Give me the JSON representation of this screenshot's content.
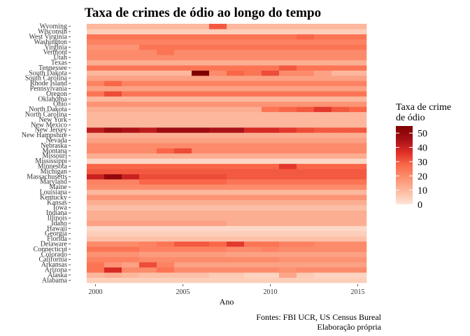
{
  "chart_data": {
    "type": "heatmap",
    "title": "Taxa de crimes de ódio ao longo do tempo",
    "xlabel": "Ano",
    "ylabel": "",
    "x": [
      2000,
      2001,
      2002,
      2003,
      2004,
      2005,
      2006,
      2007,
      2008,
      2009,
      2010,
      2011,
      2012,
      2013,
      2014,
      2015
    ],
    "x_ticks": [
      2000,
      2005,
      2010,
      2015
    ],
    "states": [
      "Alabama",
      "Alaska",
      "Arizona",
      "Arkansas",
      "California",
      "Colorado",
      "Connecticut",
      "Delaware",
      "Florida",
      "Georgia",
      "Hawaii",
      "Idaho",
      "Illinois",
      "Indiana",
      "Iowa",
      "Kansas",
      "Kentucky",
      "Louisiana",
      "Maine",
      "Maryland",
      "Massachusetts",
      "Michigan",
      "Minnesota",
      "Mississippi",
      "Missouri",
      "Montana",
      "Nebraska",
      "Nevada",
      "New Hampshire",
      "New Jersey",
      "New Mexico",
      "New York",
      "North Carolina",
      "North Dakota",
      "Ohio",
      "Oklahoma",
      "Oregon",
      "Pennsylvania",
      "Rhode Island",
      "South Carolina",
      "South Dakota",
      "Tennessee",
      "Texas",
      "Utah",
      "Vermont",
      "Virginia",
      "Washington",
      "West Virginia",
      "Wisconsin",
      "Wyoming"
    ],
    "values": [
      [
        5,
        5,
        5,
        5,
        5,
        5,
        5,
        5,
        5,
        5,
        5,
        5,
        5,
        5,
        5,
        5
      ],
      [
        10,
        12,
        10,
        8,
        8,
        8,
        8,
        6,
        6,
        4,
        4,
        14,
        6,
        4,
        4,
        4
      ],
      [
        25,
        38,
        20,
        20,
        25,
        20,
        20,
        20,
        20,
        20,
        20,
        18,
        20,
        20,
        20,
        20
      ],
      [
        25,
        18,
        15,
        32,
        22,
        15,
        15,
        15,
        15,
        15,
        15,
        15,
        15,
        15,
        15,
        15
      ],
      [
        22,
        22,
        22,
        20,
        20,
        20,
        20,
        20,
        20,
        20,
        20,
        18,
        18,
        18,
        18,
        18
      ],
      [
        18,
        18,
        18,
        16,
        16,
        16,
        16,
        16,
        15,
        15,
        15,
        15,
        15,
        15,
        15,
        15
      ],
      [
        25,
        25,
        25,
        22,
        22,
        22,
        22,
        22,
        20,
        20,
        22,
        20,
        20,
        20,
        20,
        20
      ],
      [
        20,
        20,
        20,
        22,
        25,
        30,
        30,
        28,
        35,
        25,
        25,
        22,
        22,
        20,
        20,
        20
      ],
      [
        8,
        8,
        8,
        8,
        8,
        8,
        8,
        8,
        8,
        8,
        8,
        8,
        8,
        8,
        8,
        8
      ],
      [
        5,
        5,
        5,
        5,
        5,
        5,
        5,
        5,
        5,
        5,
        5,
        5,
        5,
        5,
        5,
        5
      ],
      [
        3,
        3,
        3,
        3,
        3,
        3,
        3,
        3,
        3,
        3,
        3,
        3,
        3,
        3,
        3,
        3
      ],
      [
        15,
        15,
        15,
        15,
        15,
        15,
        15,
        15,
        12,
        12,
        12,
        12,
        12,
        12,
        12,
        12
      ],
      [
        12,
        12,
        12,
        12,
        12,
        12,
        12,
        12,
        12,
        12,
        12,
        12,
        12,
        12,
        12,
        12
      ],
      [
        12,
        12,
        12,
        12,
        12,
        12,
        12,
        12,
        12,
        12,
        12,
        12,
        12,
        12,
        12,
        12
      ],
      [
        8,
        8,
        8,
        8,
        8,
        8,
        8,
        8,
        8,
        8,
        8,
        8,
        8,
        8,
        8,
        8
      ],
      [
        12,
        12,
        12,
        12,
        12,
        12,
        12,
        12,
        12,
        12,
        12,
        12,
        12,
        12,
        12,
        12
      ],
      [
        18,
        18,
        18,
        18,
        18,
        18,
        18,
        18,
        18,
        18,
        18,
        18,
        18,
        18,
        18,
        18
      ],
      [
        10,
        10,
        10,
        10,
        10,
        10,
        10,
        10,
        10,
        10,
        10,
        10,
        10,
        10,
        10,
        10
      ],
      [
        20,
        20,
        20,
        20,
        20,
        20,
        20,
        20,
        20,
        20,
        20,
        20,
        20,
        20,
        20,
        20
      ],
      [
        22,
        22,
        22,
        28,
        28,
        28,
        28,
        28,
        25,
        25,
        25,
        25,
        25,
        25,
        25,
        25
      ],
      [
        40,
        50,
        40,
        32,
        32,
        32,
        32,
        32,
        30,
        30,
        30,
        30,
        30,
        30,
        30,
        30
      ],
      [
        30,
        30,
        30,
        30,
        30,
        30,
        30,
        30,
        30,
        30,
        30,
        30,
        30,
        30,
        30,
        30
      ],
      [
        28,
        28,
        28,
        28,
        28,
        28,
        28,
        28,
        28,
        28,
        28,
        35,
        28,
        28,
        28,
        28
      ],
      [
        3,
        3,
        3,
        3,
        3,
        3,
        3,
        3,
        3,
        3,
        3,
        3,
        3,
        3,
        3,
        3
      ],
      [
        12,
        12,
        12,
        12,
        12,
        12,
        12,
        12,
        12,
        12,
        12,
        12,
        12,
        12,
        12,
        12
      ],
      [
        20,
        20,
        20,
        20,
        28,
        32,
        20,
        20,
        20,
        20,
        20,
        20,
        20,
        20,
        20,
        20
      ],
      [
        20,
        20,
        20,
        20,
        20,
        20,
        20,
        20,
        20,
        20,
        20,
        20,
        20,
        20,
        20,
        20
      ],
      [
        15,
        15,
        15,
        15,
        15,
        15,
        15,
        15,
        15,
        15,
        15,
        15,
        15,
        15,
        15,
        15
      ],
      [
        12,
        12,
        12,
        12,
        12,
        12,
        12,
        12,
        12,
        12,
        12,
        12,
        12,
        12,
        12,
        12
      ],
      [
        42,
        48,
        45,
        42,
        48,
        48,
        48,
        45,
        45,
        38,
        38,
        35,
        32,
        30,
        30,
        30
      ],
      [
        10,
        10,
        10,
        10,
        10,
        10,
        10,
        10,
        10,
        10,
        10,
        10,
        10,
        10,
        10,
        10
      ],
      [
        10,
        10,
        10,
        10,
        10,
        10,
        10,
        10,
        10,
        10,
        10,
        10,
        10,
        10,
        10,
        10
      ],
      [
        10,
        10,
        10,
        10,
        10,
        10,
        10,
        10,
        10,
        10,
        10,
        10,
        10,
        10,
        10,
        10
      ],
      [
        12,
        12,
        12,
        12,
        12,
        12,
        12,
        12,
        12,
        12,
        25,
        28,
        30,
        35,
        30,
        28
      ],
      [
        18,
        18,
        18,
        18,
        18,
        18,
        18,
        18,
        18,
        18,
        18,
        18,
        18,
        18,
        18,
        18
      ],
      [
        10,
        10,
        10,
        10,
        10,
        10,
        10,
        10,
        10,
        10,
        10,
        10,
        10,
        10,
        10,
        10
      ],
      [
        25,
        32,
        25,
        25,
        25,
        25,
        25,
        25,
        25,
        25,
        25,
        25,
        25,
        25,
        25,
        25
      ],
      [
        15,
        15,
        15,
        15,
        15,
        15,
        15,
        15,
        15,
        15,
        15,
        15,
        15,
        15,
        15,
        15
      ],
      [
        22,
        28,
        22,
        22,
        22,
        22,
        22,
        22,
        22,
        22,
        22,
        22,
        22,
        22,
        22,
        22
      ],
      [
        15,
        15,
        15,
        15,
        15,
        15,
        15,
        15,
        15,
        15,
        15,
        15,
        15,
        15,
        15,
        15
      ],
      [
        10,
        10,
        10,
        10,
        10,
        10,
        55,
        20,
        28,
        25,
        32,
        20,
        20,
        15,
        10,
        10
      ],
      [
        25,
        25,
        25,
        25,
        25,
        25,
        25,
        25,
        25,
        25,
        25,
        30,
        25,
        25,
        25,
        25
      ],
      [
        12,
        12,
        12,
        12,
        12,
        12,
        12,
        12,
        12,
        12,
        12,
        12,
        12,
        12,
        12,
        12
      ],
      [
        20,
        20,
        20,
        20,
        20,
        20,
        20,
        20,
        20,
        20,
        20,
        20,
        20,
        20,
        20,
        20
      ],
      [
        20,
        20,
        20,
        20,
        25,
        20,
        20,
        20,
        20,
        20,
        20,
        20,
        20,
        20,
        20,
        20
      ],
      [
        18,
        18,
        18,
        25,
        25,
        25,
        25,
        25,
        25,
        25,
        25,
        25,
        25,
        25,
        25,
        25
      ],
      [
        22,
        22,
        22,
        22,
        22,
        22,
        22,
        22,
        22,
        22,
        22,
        22,
        22,
        22,
        22,
        22
      ],
      [
        25,
        25,
        25,
        25,
        25,
        25,
        25,
        25,
        25,
        25,
        25,
        25,
        28,
        25,
        25,
        25
      ],
      [
        5,
        5,
        5,
        5,
        5,
        5,
        5,
        5,
        5,
        5,
        5,
        5,
        5,
        5,
        5,
        5
      ],
      [
        10,
        10,
        10,
        10,
        10,
        10,
        10,
        30,
        10,
        10,
        10,
        10,
        10,
        10,
        10,
        10
      ]
    ],
    "legend": {
      "title": "Taxa de crime\nde ódio",
      "ticks": [
        0,
        10,
        20,
        30,
        40,
        50
      ],
      "limits": [
        0,
        55
      ],
      "position": "right"
    },
    "color_scale": [
      "#fee5d9",
      "#fcbba1",
      "#fc9272",
      "#fb6a4a",
      "#de2d26",
      "#a50f15",
      "#7f0000"
    ],
    "grid": false,
    "caption_lines": [
      "Fontes: FBI UCR, US Census Bureal",
      "Elaboração própria"
    ]
  }
}
